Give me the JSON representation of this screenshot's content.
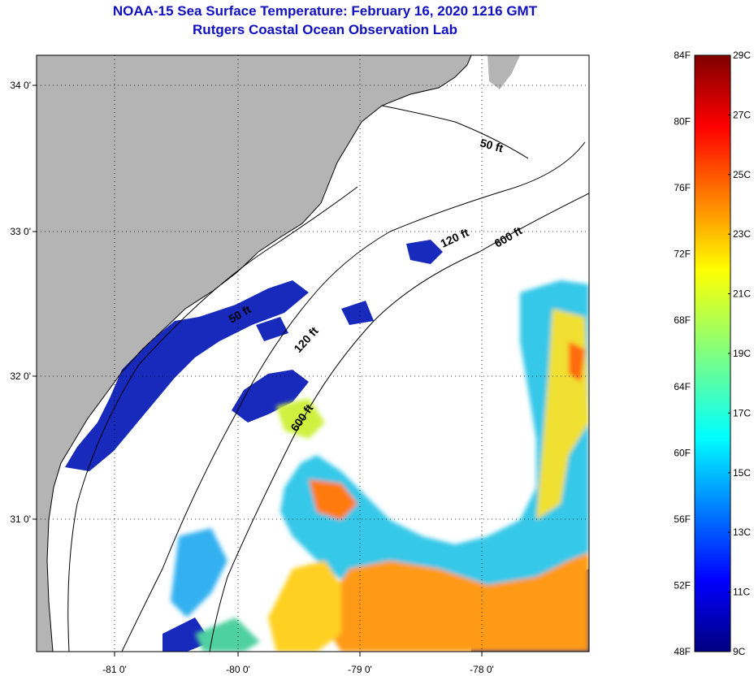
{
  "title_line1": "NOAA-15 Sea Surface Temperature:  February 16, 2020 1216 GMT",
  "title_line2": "Rutgers Coastal Ocean Observation Lab",
  "lat_ticks": [
    "34 0'",
    "33 0'",
    "32 0'",
    "31 0'"
  ],
  "lon_ticks": [
    "-81 0'",
    "-80 0'",
    "-79 0'",
    "-78 0'"
  ],
  "isobaths": [
    "50 ft",
    "120 ft",
    "600 ft",
    "50 ft",
    "120 ft",
    "600 ft"
  ],
  "colorbar": {
    "fahrenheit": [
      "84F",
      "80F",
      "76F",
      "72F",
      "68F",
      "64F",
      "60F",
      "56F",
      "52F",
      "48F"
    ],
    "celsius": [
      "29C",
      "27C",
      "25C",
      "23C",
      "21C",
      "19C",
      "17C",
      "15C",
      "13C",
      "11C",
      "9C"
    ]
  },
  "colors": {
    "land": "#b4b4b4",
    "title": "#1010c0",
    "ocean_no_data": "#ffffff"
  }
}
